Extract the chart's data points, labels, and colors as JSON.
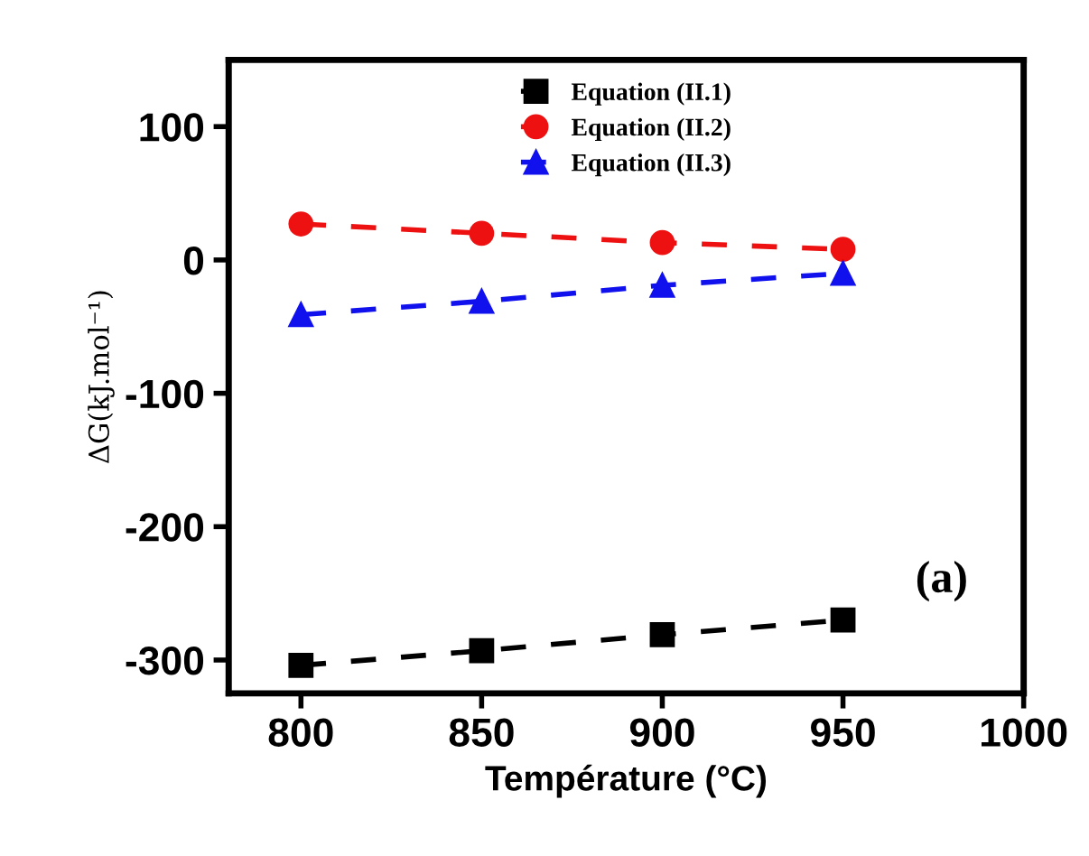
{
  "chart_data": {
    "type": "line",
    "xlabel": "Température (°C)",
    "ylabel": "ΔG(kJ.mol⁻¹)",
    "x": [
      800,
      850,
      900,
      950
    ],
    "series": [
      {
        "name": "Equation (II.1)",
        "color": "#000000",
        "marker": "square",
        "values": [
          -304,
          -293,
          -281,
          -270
        ]
      },
      {
        "name": "Equation (II.2)",
        "color": "#ee1111",
        "marker": "circle",
        "values": [
          27,
          20,
          13,
          8
        ]
      },
      {
        "name": "Equation (II.3)",
        "color": "#1111ee",
        "marker": "triangle",
        "values": [
          -41,
          -31,
          -19,
          -10
        ]
      }
    ],
    "line_style": "dashed",
    "legend": "top",
    "grid": false,
    "xlim": [
      780,
      1000
    ],
    "xticks": [
      800,
      850,
      900,
      950,
      1000
    ],
    "ylim": [
      -325,
      150
    ],
    "yticks": [
      -300,
      -200,
      -100,
      0,
      100
    ],
    "annotations": [
      "(a)"
    ]
  }
}
